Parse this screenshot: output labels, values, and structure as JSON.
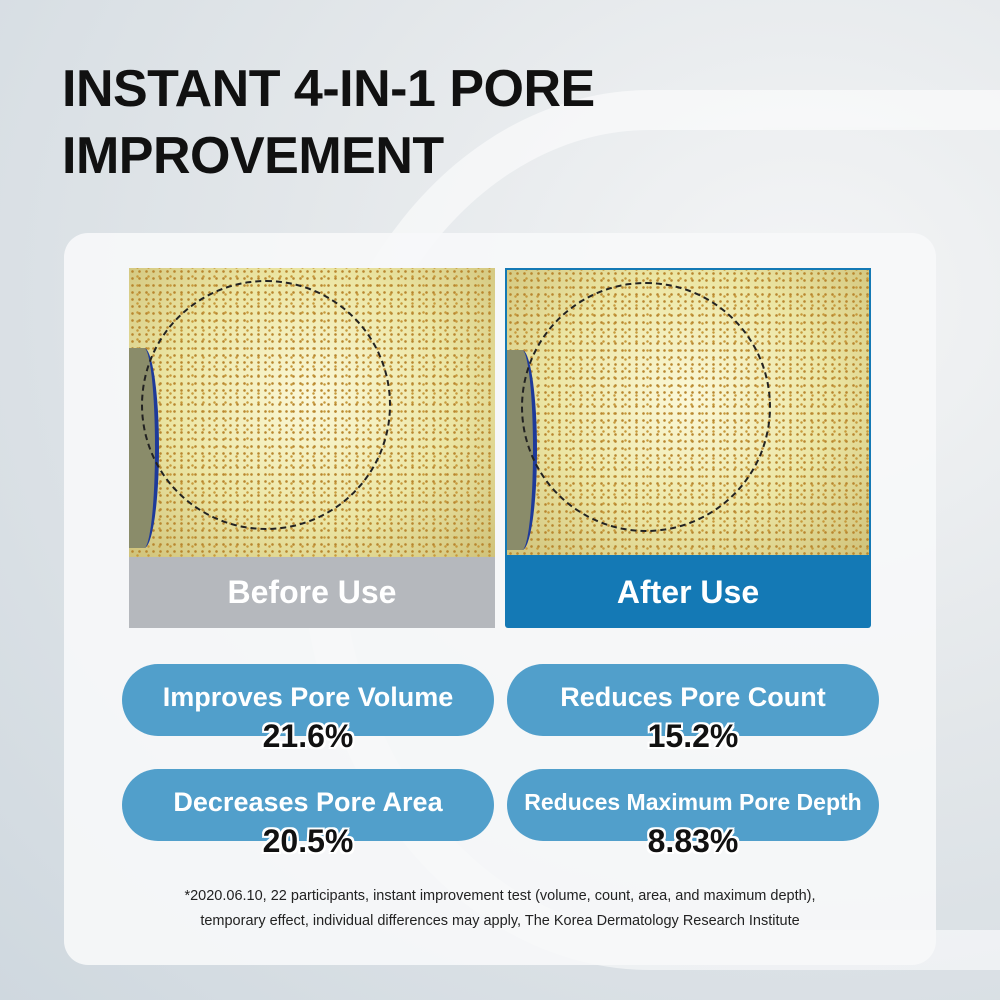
{
  "title": {
    "line1": "INSTANT 4-IN-1 PORE",
    "line2": "IMPROVEMENT"
  },
  "comparison": {
    "before_label": "Before Use",
    "after_label": "After Use"
  },
  "stats": [
    {
      "label": "Improves Pore Volume",
      "value": "21.6%"
    },
    {
      "label": "Reduces Pore Count",
      "value": "15.2%"
    },
    {
      "label": "Decreases Pore Area",
      "value": "20.5%"
    },
    {
      "label": "Reduces Maximum Pore Depth",
      "value": "8.83%"
    }
  ],
  "footnote": {
    "line1": "*2020.06.10, 22 participants, instant improvement test (volume, count, area, and maximum depth),",
    "line2": "temporary effect, individual differences may apply, The Korea Dermatology Research Institute"
  },
  "colors": {
    "pill": "#519fcb",
    "after": "#1479b5",
    "before": "#b5b8bd"
  }
}
